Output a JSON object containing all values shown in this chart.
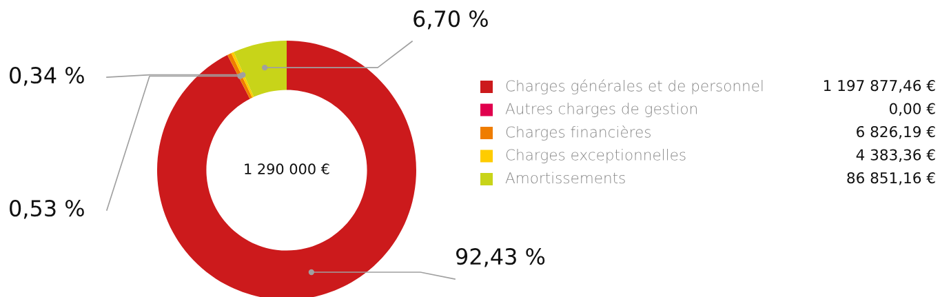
{
  "chart_data": {
    "type": "donut",
    "categories": [
      "Charges générales et de personnel",
      "Autres charges de gestion",
      "Charges financières",
      "Charges exceptionnelles",
      "Amortissements"
    ],
    "values": [
      92.43,
      0,
      0.53,
      0.34,
      6.7
    ],
    "colors": [
      "#cc1a1c",
      "#e0004d",
      "#ef7d00",
      "#ffcc00",
      "#c8d419"
    ],
    "value_labels": [
      "92,43 %",
      null,
      "0,53 %",
      "0,34 %",
      "6,70 %"
    ],
    "legend": "right",
    "annotations": [
      "1 290 000 €",
      "1 197 877,46 €",
      "0,00 €",
      "6 826,19 €",
      "4 383,36 €",
      "86 851,16 €"
    ]
  }
}
